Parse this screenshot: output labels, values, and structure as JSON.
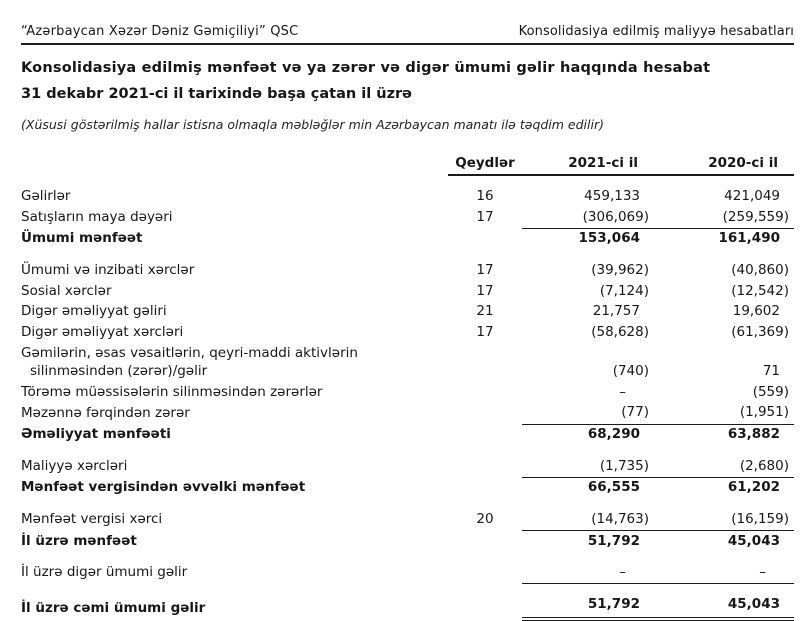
{
  "page_header": {
    "company": "“Azərbaycan Xəzər Dəniz Gəmiçiliyi” QSC",
    "report_type": "Konsolidasiya edilmiş maliyyə hesabatları"
  },
  "title": "Konsolidasiya edilmiş mənfəət və ya zərər və digər ümumi gəlir haqqında hesabat",
  "period": "31 dekabr 2021-ci il tarixində başa çatan il üzrə",
  "note": "(Xüsusi göstərilmiş hallar istisna olmaqla məbləğlər min Azərbaycan manatı ilə təqdim edilir)",
  "table": {
    "columns": {
      "notes": "Qeydlər",
      "y2021": "2021-ci il",
      "y2020": "2020-ci il"
    },
    "rows": [
      {
        "label": "Gəlirlər",
        "note": "16",
        "v2021": "459,133",
        "v2020": "421,049",
        "gap": true
      },
      {
        "label": "Satışların maya dəyəri",
        "note": "17",
        "v2021": "(306,069)",
        "v2020": "(259,559)",
        "rule": true
      },
      {
        "label": "Ümumi mənfəət",
        "note": "",
        "v2021": "153,064",
        "v2020": "161,490",
        "bold": true
      },
      {
        "label": "Ümumi və inzibati xərclər",
        "note": "17",
        "v2021": "(39,962)",
        "v2020": "(40,860)",
        "gap": true
      },
      {
        "label": "Sosial xərclər",
        "note": "17",
        "v2021": "(7,124)",
        "v2020": "(12,542)"
      },
      {
        "label": "Digər əməliyyat gəliri",
        "note": "21",
        "v2021": "21,757",
        "v2020": "19,602"
      },
      {
        "label": "Digər əməliyyat xərcləri",
        "note": "17",
        "v2021": "(58,628)",
        "v2020": "(61,369)"
      },
      {
        "label": "Gəmilərin, əsas vəsaitlərin, qeyri-maddi aktivlərin",
        "label2": "silinməsindən (zərər)/gəlir",
        "note": "",
        "v2021": "(740)",
        "v2020": "71"
      },
      {
        "label": "Törəmə müəssisələrin silinməsindən zərərlər",
        "note": "",
        "v2021": "–",
        "v2020": "(559)"
      },
      {
        "label": "Məzənnə fərqindən zərər",
        "note": "",
        "v2021": "(77)",
        "v2020": "(1,951)",
        "rule": true
      },
      {
        "label": "Əməliyyat mənfəəti",
        "note": "",
        "v2021": "68,290",
        "v2020": "63,882",
        "bold": true
      },
      {
        "label": "Maliyyə xərcləri",
        "note": "",
        "v2021": "(1,735)",
        "v2020": "(2,680)",
        "rule": true,
        "gap": true
      },
      {
        "label": "Mənfəət vergisindən əvvəlki mənfəət",
        "note": "",
        "v2021": "66,555",
        "v2020": "61,202",
        "bold": true
      },
      {
        "label": "Mənfəət vergisi xərci",
        "note": "20",
        "v2021": "(14,763)",
        "v2020": "(16,159)",
        "rule": true,
        "gap": true
      },
      {
        "label": "İl üzrə mənfəət",
        "note": "",
        "v2021": "51,792",
        "v2020": "45,043",
        "bold": true
      },
      {
        "label": "İl üzrə digər ümumi gəlir",
        "note": "",
        "v2021": "–",
        "v2020": "–",
        "rule": true,
        "gap": true
      },
      {
        "label": "İl üzrə cəmi ümumi gəlir",
        "note": "",
        "v2021": "51,792",
        "v2020": "45,043",
        "bold": true,
        "double_rule": true,
        "gap": true
      }
    ]
  }
}
